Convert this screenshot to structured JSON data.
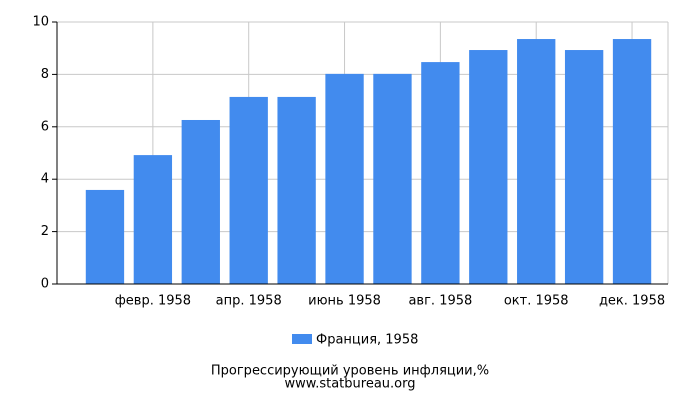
{
  "chart_data": {
    "type": "bar",
    "title": "Прогрессирующий уровень инфляции,%",
    "source": "www.statbureau.org",
    "categories": [
      null,
      "февр. 1958",
      null,
      "апр. 1958",
      null,
      "июнь 1958",
      null,
      "авг. 1958",
      null,
      "окт. 1958",
      null,
      "дек. 1958"
    ],
    "series": [
      {
        "name": "Франция, 1958",
        "color": "#428bee",
        "values": [
          3.59,
          4.92,
          6.26,
          7.14,
          7.14,
          8.02,
          8.02,
          8.47,
          8.93,
          9.35,
          8.93,
          9.35
        ]
      }
    ],
    "ylim": [
      0,
      10
    ],
    "yticks": [
      0,
      2,
      4,
      6,
      8,
      10
    ],
    "grid": true
  }
}
